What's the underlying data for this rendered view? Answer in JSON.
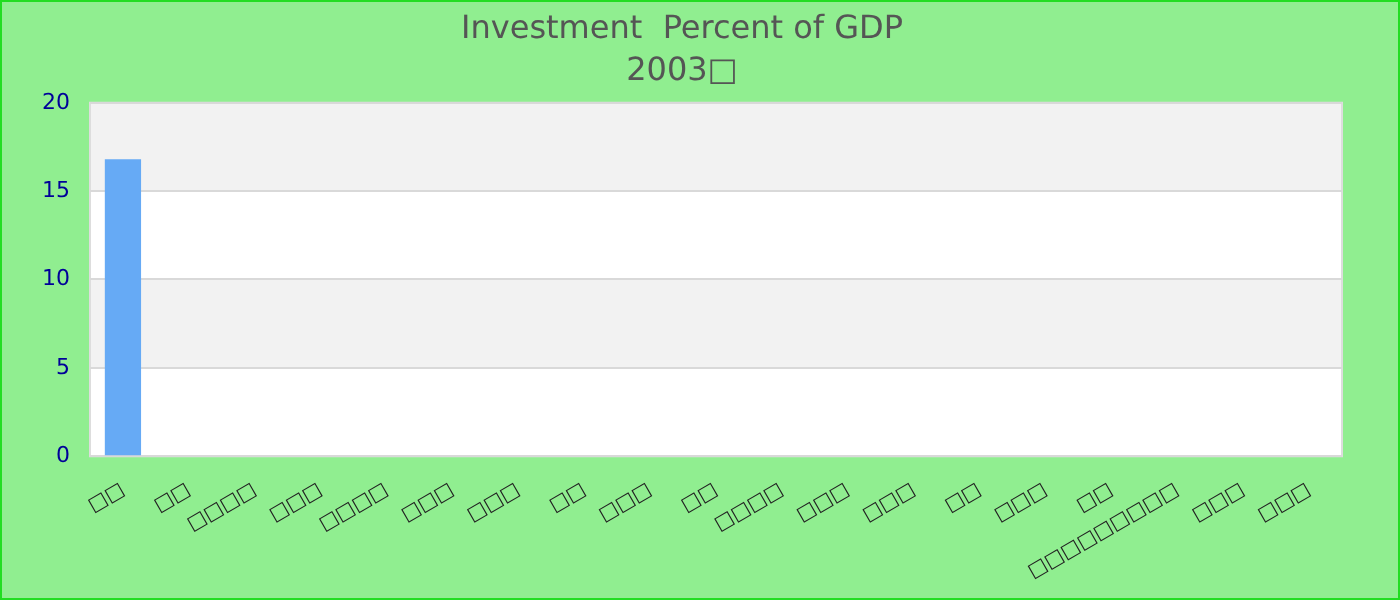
{
  "chart_data": {
    "type": "bar",
    "title": "Investment  Percent of GDP",
    "subtitle": "2003□",
    "categories": [
      "□□",
      "□□",
      "□□□□",
      "□□□",
      "□□□□",
      "□□□",
      "□□□",
      "□□",
      "□□□",
      "□□",
      "□□□□",
      "□□□",
      "□□□",
      "□□",
      "□□□",
      "□□",
      "□□□□□□□□□",
      "□□□",
      "□□□"
    ],
    "values": [
      16.8,
      null,
      null,
      null,
      null,
      null,
      null,
      null,
      null,
      null,
      null,
      null,
      null,
      null,
      null,
      null,
      null,
      null,
      null
    ],
    "color": "#66aaf5",
    "ylim": [
      0,
      20
    ],
    "yticks": [
      0,
      5,
      10,
      15,
      20
    ],
    "grid": true
  }
}
